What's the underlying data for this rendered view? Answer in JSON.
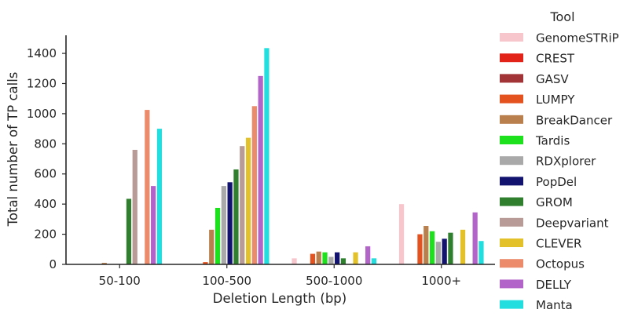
{
  "chart_data": {
    "type": "bar",
    "xlabel": "Deletion Length (bp)",
    "ylabel": "Total number of TP calls",
    "ylim": [
      0,
      1520
    ],
    "yticks": [
      0,
      200,
      400,
      600,
      800,
      1000,
      1200,
      1400
    ],
    "categories": [
      "50-100",
      "100-500",
      "500-1000",
      "1000+"
    ],
    "legend": {
      "title": "Tool",
      "placement": "right"
    },
    "grid": false,
    "series": [
      {
        "name": "GenomeSTRiP",
        "color": "#f7c6cd",
        "values": [
          0,
          0,
          40,
          400
        ]
      },
      {
        "name": "CREST",
        "color": "#e2231a",
        "values": [
          0,
          0,
          0,
          0
        ]
      },
      {
        "name": "GASV",
        "color": "#a23336",
        "values": [
          0,
          0,
          0,
          0
        ]
      },
      {
        "name": "LUMPY",
        "color": "#e4521f",
        "values": [
          0,
          15,
          70,
          200
        ]
      },
      {
        "name": "BreakDancer",
        "color": "#b97f4c",
        "values": [
          10,
          230,
          85,
          255
        ]
      },
      {
        "name": "Tardis",
        "color": "#1ee11e",
        "values": [
          0,
          375,
          80,
          220
        ]
      },
      {
        "name": "RDXplorer",
        "color": "#a9a9a9",
        "values": [
          0,
          520,
          50,
          150
        ]
      },
      {
        "name": "PopDel",
        "color": "#12126f",
        "values": [
          0,
          545,
          80,
          170
        ]
      },
      {
        "name": "GROM",
        "color": "#2f7f2f",
        "values": [
          435,
          630,
          40,
          210
        ]
      },
      {
        "name": "Deepvariant",
        "color": "#b89b96",
        "values": [
          760,
          785,
          0,
          0
        ]
      },
      {
        "name": "CLEVER",
        "color": "#e2c12a",
        "values": [
          0,
          840,
          80,
          230
        ]
      },
      {
        "name": "Octopus",
        "color": "#ec8b6b",
        "values": [
          1025,
          1050,
          0,
          0
        ]
      },
      {
        "name": "DELLY",
        "color": "#b264c8",
        "values": [
          520,
          1250,
          120,
          345
        ]
      },
      {
        "name": "Manta",
        "color": "#22dede",
        "values": [
          900,
          1435,
          40,
          155
        ]
      }
    ]
  }
}
